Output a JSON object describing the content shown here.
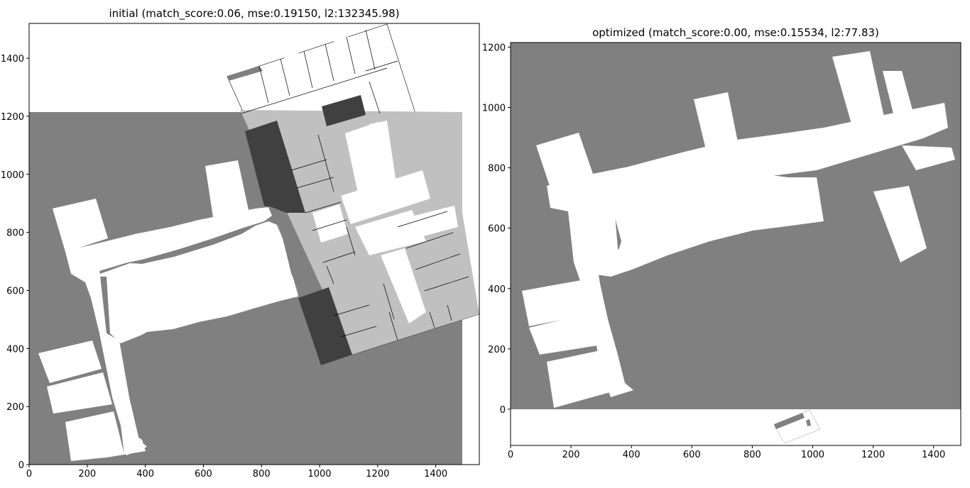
{
  "chart_data": [
    {
      "type": "heatmap",
      "title": "initial (match_score:0.06, mse:0.19150, l2:132345.98)",
      "xlim": [
        0,
        1550
      ],
      "ylim": [
        0,
        1520
      ],
      "xticks": [
        0,
        200,
        400,
        600,
        800,
        1000,
        1200,
        1400
      ],
      "yticks": [
        0,
        200,
        400,
        600,
        800,
        1000,
        1200,
        1400
      ],
      "xtick_labels": [
        "0",
        "200",
        "400",
        "600",
        "800",
        "1000",
        "1200",
        "1400"
      ],
      "ytick_labels": [
        "0",
        "200",
        "400",
        "600",
        "800",
        "1000",
        "1200",
        "1400"
      ],
      "grid": false,
      "layers": {
        "target_map_extent": [
          [
            0,
            0
          ],
          [
            1490,
            1210
          ]
        ],
        "overlaid_floorplan_corners": [
          [
            700,
            1500
          ],
          [
            1110,
            1520
          ],
          [
            1550,
            510
          ],
          [
            1000,
            340
          ]
        ]
      },
      "colors": {
        "unknown": "#808080",
        "free": "#ffffff",
        "overlap_dark": "#404040",
        "overlap_light": "#c0c0c0"
      }
    },
    {
      "type": "heatmap",
      "title": "optimized (match_score:0.00, mse:0.15534, l2:77.83)",
      "xlim": [
        0,
        1490
      ],
      "ylim": [
        -120,
        1215
      ],
      "xticks": [
        0,
        200,
        400,
        600,
        800,
        1000,
        1200,
        1400
      ],
      "yticks": [
        0,
        200,
        400,
        600,
        800,
        1000,
        1200
      ],
      "xtick_labels": [
        "0",
        "200",
        "400",
        "600",
        "800",
        "1000",
        "1200",
        "1400"
      ],
      "ytick_labels": [
        "0",
        "200",
        "400",
        "600",
        "800",
        "1000",
        "1200"
      ],
      "grid": false,
      "layers": {
        "target_map_extent": [
          [
            0,
            0
          ],
          [
            1490,
            1215
          ]
        ],
        "overlaid_floorplan_corners": [
          [
            870,
            -60
          ],
          [
            990,
            0
          ],
          [
            1020,
            -70
          ],
          [
            900,
            -120
          ]
        ]
      },
      "colors": {
        "unknown": "#808080",
        "free": "#ffffff"
      }
    }
  ]
}
